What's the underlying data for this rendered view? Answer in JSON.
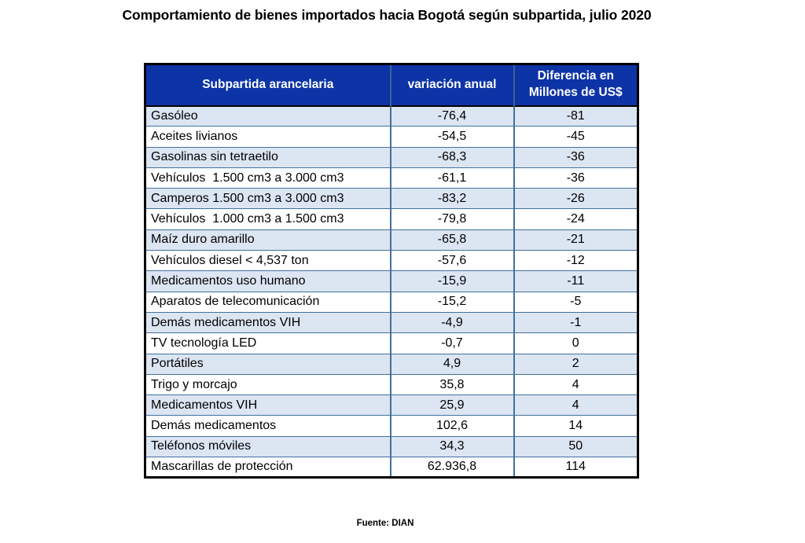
{
  "chart_data": {
    "type": "table",
    "title": "Comportamiento de bienes importados hacia Bogotá según subpartida, julio 2020",
    "columns": [
      "Subpartida arancelaria",
      "variación anual",
      "Diferencia en Millones de US$"
    ],
    "rows": [
      [
        "Gasóleo",
        "-76,4",
        "-81"
      ],
      [
        "Aceites livianos",
        "-54,5",
        "-45"
      ],
      [
        "Gasolinas sin tetraetilo",
        "-68,3",
        "-36"
      ],
      [
        "Vehículos  1.500 cm3 a 3.000 cm3",
        "-61,1",
        "-36"
      ],
      [
        "Camperos 1.500 cm3 a 3.000 cm3",
        "-83,2",
        "-26"
      ],
      [
        "Vehículos  1.000 cm3 a 1.500 cm3",
        "-79,8",
        "-24"
      ],
      [
        "Maíz duro amarillo",
        "-65,8",
        "-21"
      ],
      [
        "Vehículos diesel < 4,537 ton",
        "-57,6",
        "-12"
      ],
      [
        "Medicamentos uso humano",
        "-15,9",
        "-11"
      ],
      [
        "Aparatos de telecomunicación",
        "-15,2",
        "-5"
      ],
      [
        "Demás medicamentos VIH",
        "-4,9",
        "-1"
      ],
      [
        "TV tecnología LED",
        "-0,7",
        "0"
      ],
      [
        "Portátiles",
        "4,9",
        "2"
      ],
      [
        "Trigo y morcajo",
        "35,8",
        "4"
      ],
      [
        "Medicamentos VIH",
        "25,9",
        "4"
      ],
      [
        "Demás medicamentos",
        "102,6",
        "14"
      ],
      [
        "Teléfonos móviles",
        "34,3",
        "50"
      ],
      [
        "Mascarillas de protección",
        "62.936,8",
        "114"
      ]
    ],
    "source": "Fuente: DIAN",
    "colors": {
      "header_bg": "#0D34A6",
      "header_text": "#FFFFFF",
      "row_alt_bg": "#DCE5F2",
      "row_bg": "#FFFFFF",
      "grid_line": "#41719C",
      "outer_border": "#000000"
    }
  }
}
